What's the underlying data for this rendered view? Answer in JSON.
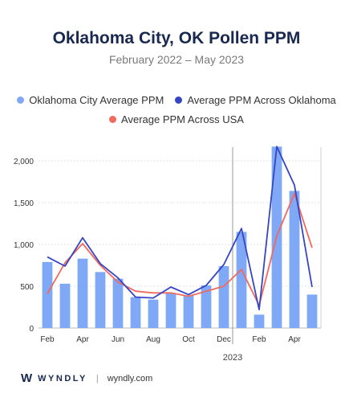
{
  "chart_data": {
    "type": "bar",
    "title": "Oklahoma City, OK Pollen PPM",
    "subtitle": "February 2022 – May 2023",
    "categories": [
      "Feb 2022",
      "Mar 2022",
      "Apr 2022",
      "May 2022",
      "Jun 2022",
      "Jul 2022",
      "Aug 2022",
      "Sep 2022",
      "Oct 2022",
      "Nov 2022",
      "Dec 2022",
      "Jan 2023",
      "Feb 2023",
      "Mar 2023",
      "Apr 2023",
      "May 2023"
    ],
    "x_tick_labels": [
      "Feb",
      "Apr",
      "Jun",
      "Aug",
      "Oct",
      "Dec",
      "Feb",
      "Apr"
    ],
    "year_label": "2023",
    "ylim": [
      0,
      2000
    ],
    "y_ticks": [
      "0",
      "500",
      "1,000",
      "1,500",
      "2,000"
    ],
    "series": [
      {
        "name": "Oklahoma City Average PPM",
        "type": "bar",
        "color": "#7fa9f6",
        "values": [
          790,
          530,
          830,
          670,
          590,
          370,
          340,
          420,
          390,
          510,
          740,
          1150,
          160,
          2170,
          1640,
          400
        ]
      },
      {
        "name": "Average PPM Across Oklahoma",
        "type": "line",
        "color": "#3545c4",
        "values": [
          850,
          740,
          1080,
          770,
          600,
          370,
          360,
          490,
          400,
          510,
          760,
          1190,
          220,
          2170,
          1710,
          490
        ]
      },
      {
        "name": "Average PPM Across USA",
        "type": "line",
        "color": "#f06a5d",
        "values": [
          410,
          780,
          1010,
          750,
          550,
          440,
          420,
          420,
          380,
          440,
          500,
          700,
          270,
          1100,
          1610,
          960
        ]
      }
    ],
    "legend_position": "top",
    "grid": true
  },
  "footer": {
    "brand": "WYNDLY",
    "separator": "|",
    "url": "wyndly.com"
  }
}
